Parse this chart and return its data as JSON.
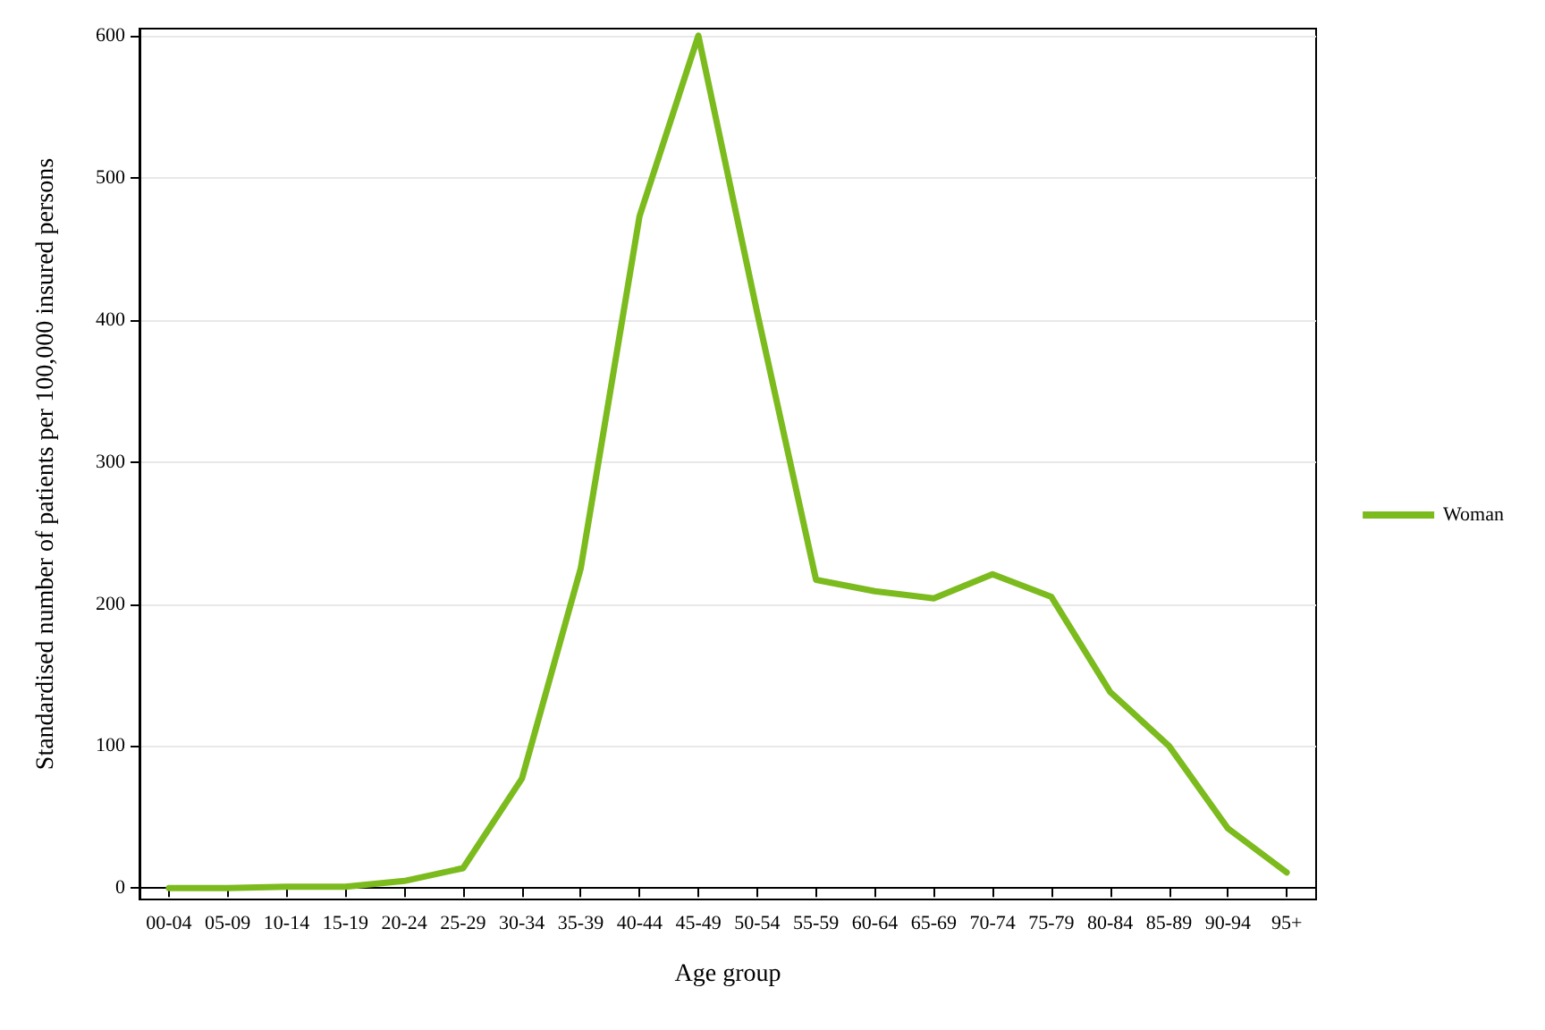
{
  "chart_data": {
    "type": "line",
    "xlabel": "Age group",
    "ylabel": "Standardised number of patients per 100,000 insured persons",
    "categories": [
      "00-04",
      "05-09",
      "10-14",
      "15-19",
      "20-24",
      "25-29",
      "30-34",
      "35-39",
      "40-44",
      "45-49",
      "50-54",
      "55-59",
      "60-64",
      "65-69",
      "70-74",
      "75-79",
      "80-84",
      "85-89",
      "90-94",
      "95+"
    ],
    "series": [
      {
        "name": "Woman",
        "color": "#7cbb1e",
        "values": [
          0,
          0,
          1,
          1,
          5,
          14,
          77,
          225,
          473,
          600,
          405,
          217,
          209,
          204,
          221,
          205,
          138,
          100,
          42,
          11
        ]
      }
    ],
    "ylim": [
      -8,
      605
    ],
    "yticks": [
      0,
      100,
      200,
      300,
      400,
      500,
      600
    ],
    "grid": "y",
    "legend": "right",
    "marker": "none",
    "line_style": "solid"
  }
}
